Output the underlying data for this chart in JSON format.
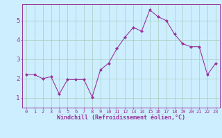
{
  "x": [
    0,
    1,
    2,
    3,
    4,
    5,
    6,
    7,
    8,
    9,
    10,
    11,
    12,
    13,
    14,
    15,
    16,
    17,
    18,
    19,
    20,
    21,
    22,
    23
  ],
  "y": [
    2.2,
    2.2,
    2.0,
    2.1,
    1.2,
    1.95,
    1.95,
    1.95,
    1.05,
    2.45,
    2.8,
    3.55,
    4.15,
    4.65,
    4.45,
    5.55,
    5.2,
    5.0,
    4.3,
    3.8,
    3.65,
    3.65,
    2.2,
    2.8
  ],
  "line_color": "#993399",
  "marker": "D",
  "marker_size": 2.0,
  "bg_color": "#cceeff",
  "grid_color": "#aaccbb",
  "xlabel": "Windchill (Refroidissement éolien,°C)",
  "xlabel_color": "#993399",
  "tick_color": "#993399",
  "axis_color": "#993399",
  "xlim": [
    -0.5,
    23.5
  ],
  "ylim": [
    0.5,
    5.85
  ],
  "yticks": [
    1,
    2,
    3,
    4,
    5
  ],
  "xticks": [
    0,
    1,
    2,
    3,
    4,
    5,
    6,
    7,
    8,
    9,
    10,
    11,
    12,
    13,
    14,
    15,
    16,
    17,
    18,
    19,
    20,
    21,
    22,
    23
  ],
  "figsize": [
    3.2,
    2.0
  ],
  "dpi": 100
}
